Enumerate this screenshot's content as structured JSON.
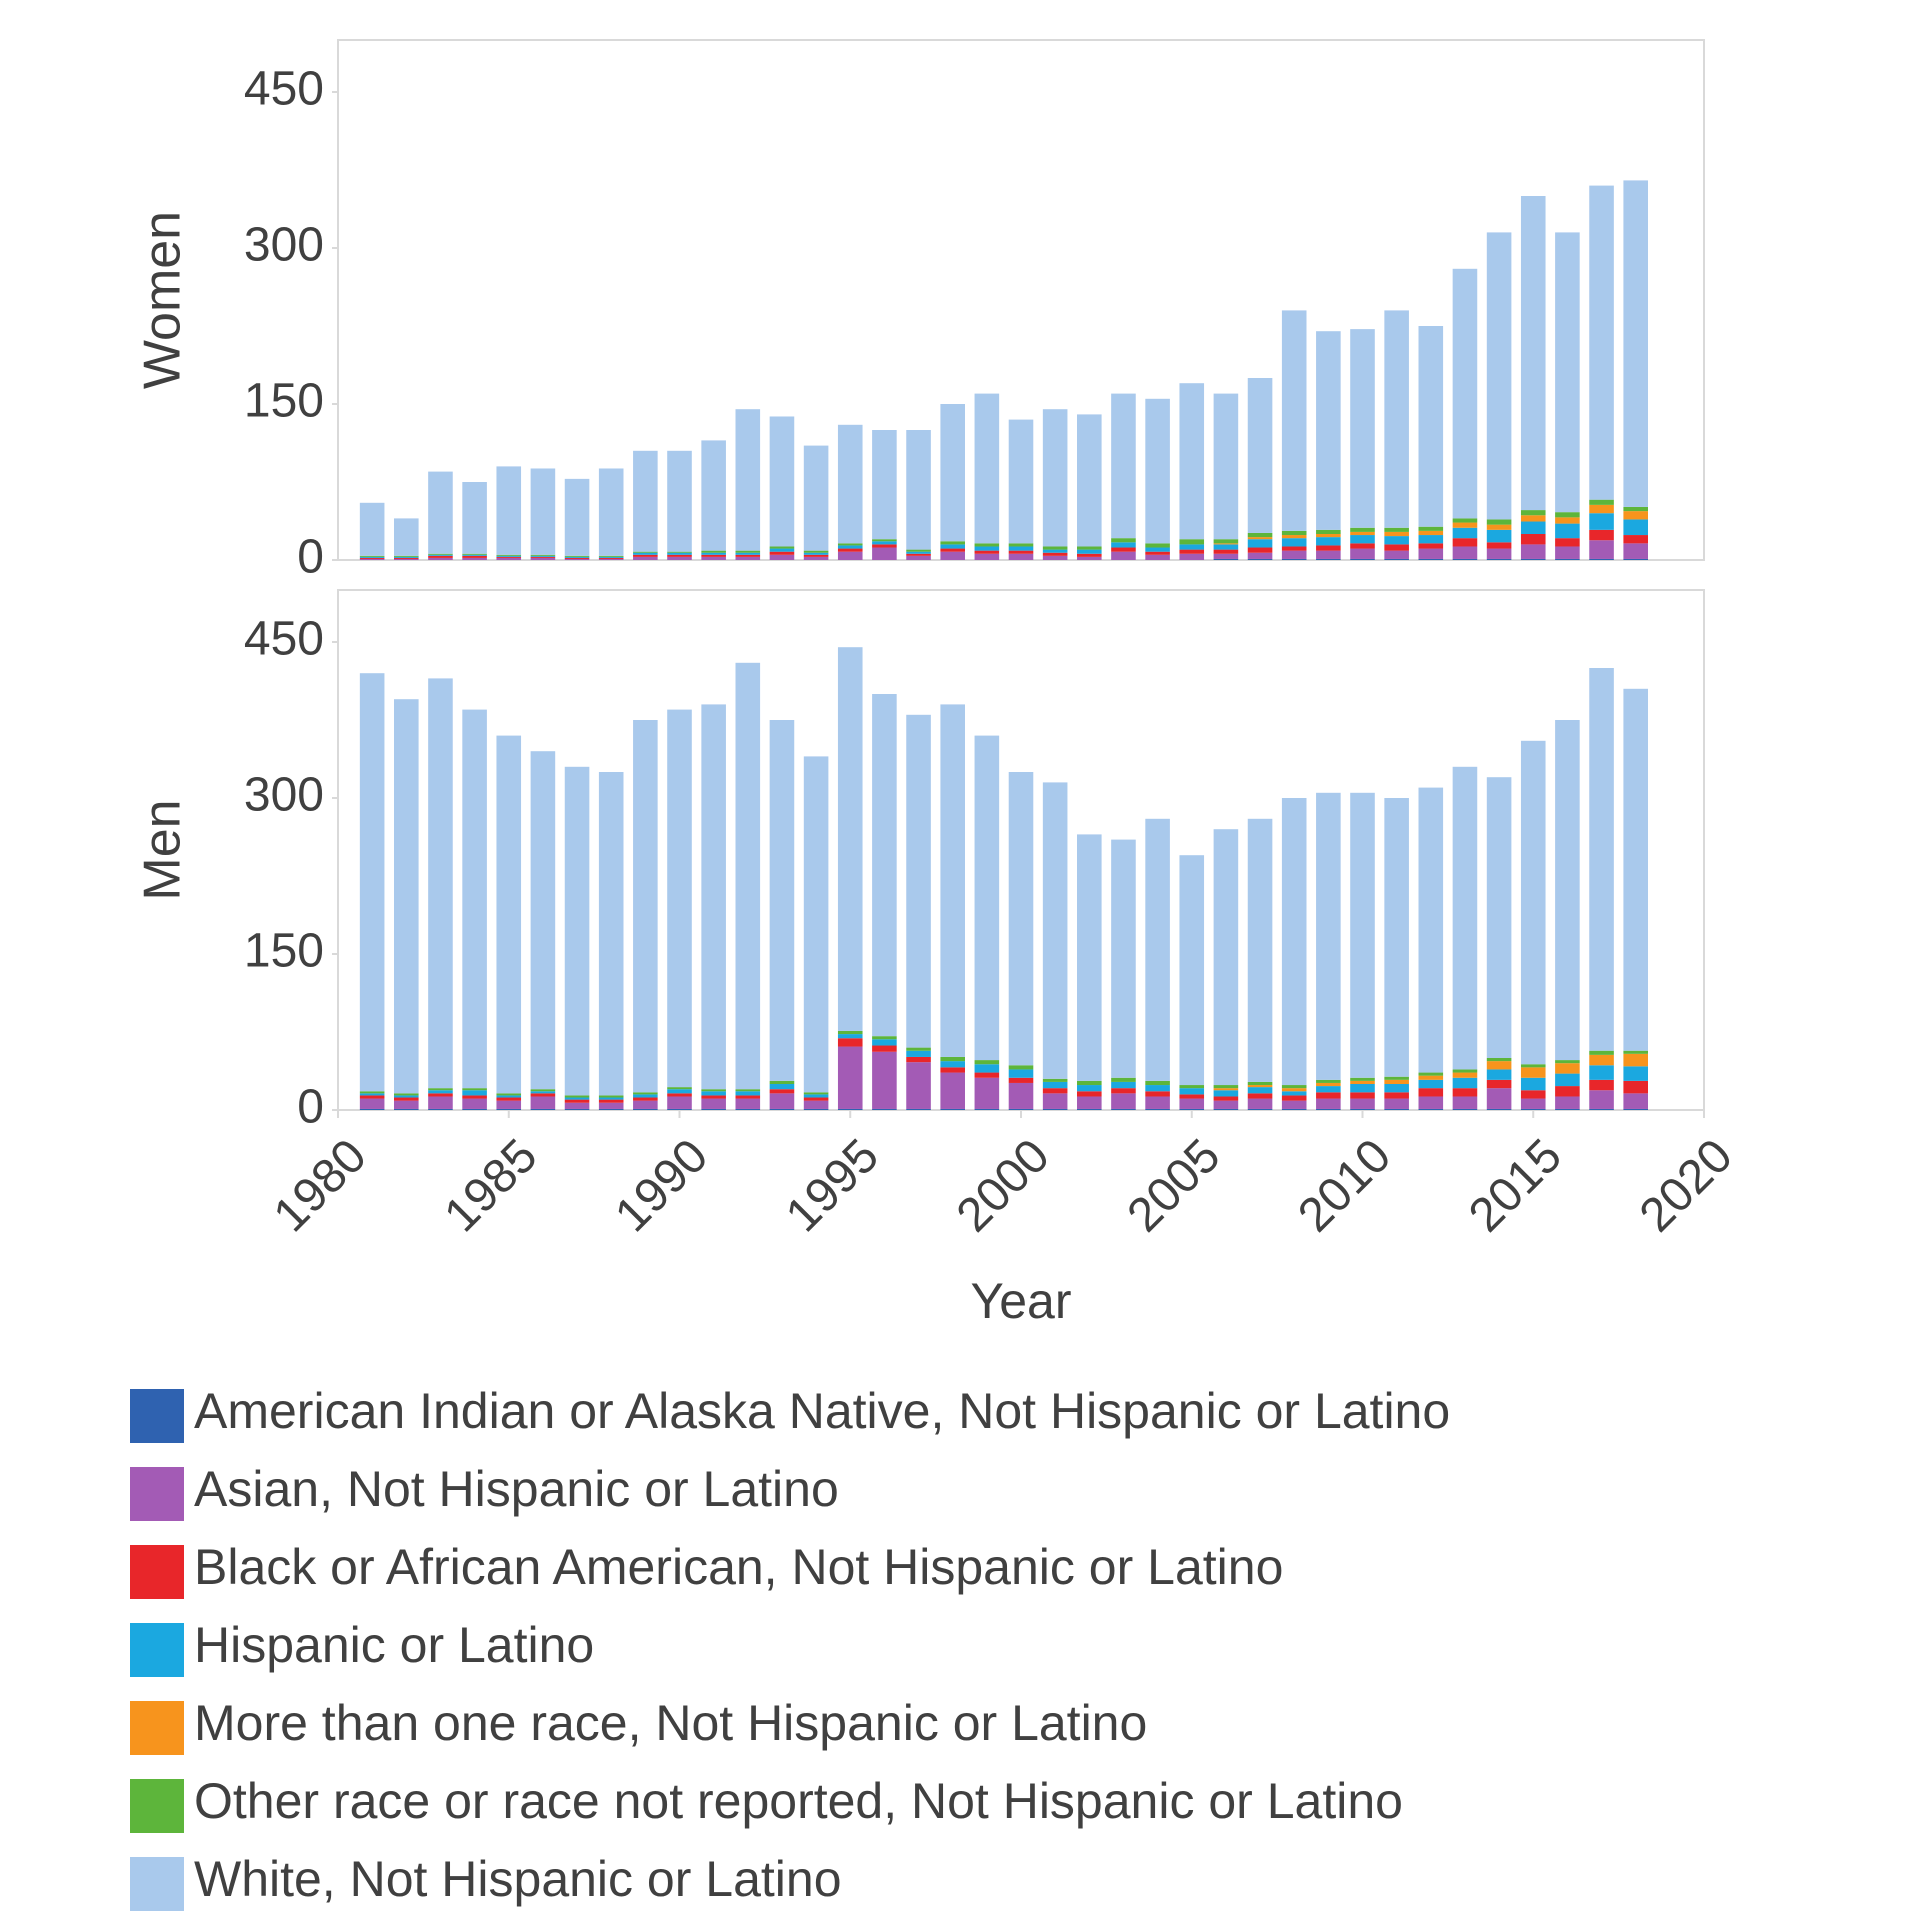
{
  "chart_data": {
    "type": "bar",
    "stacked": true,
    "xlabel": "Year",
    "x": [
      1981,
      1982,
      1983,
      1984,
      1985,
      1986,
      1987,
      1988,
      1989,
      1990,
      1991,
      1992,
      1993,
      1994,
      1995,
      1996,
      1997,
      1998,
      1999,
      2000,
      2001,
      2002,
      2003,
      2004,
      2005,
      2006,
      2007,
      2008,
      2009,
      2010,
      2011,
      2012,
      2013,
      2014,
      2015,
      2016,
      2017,
      2018
    ],
    "xlim": [
      1980,
      2020
    ],
    "xticks": [
      1980,
      1985,
      1990,
      1995,
      2000,
      2005,
      2010,
      2015,
      2020
    ],
    "series": [
      {
        "name": "American Indian or Alaska Native, Not Hispanic or Latino",
        "color": "#2f62b0"
      },
      {
        "name": "Asian, Not Hispanic or Latino",
        "color": "#a35bb5"
      },
      {
        "name": "Black or African American, Not Hispanic or Latino",
        "color": "#e8262a"
      },
      {
        "name": "Hispanic or Latino",
        "color": "#1ba8e0"
      },
      {
        "name": "More than one race, Not Hispanic or Latino",
        "color": "#f7941d"
      },
      {
        "name": "Other race or race not reported, Not Hispanic or Latino",
        "color": "#5db53b"
      },
      {
        "name": "White, Not Hispanic or Latino",
        "color": "#a9c9ec"
      }
    ],
    "panels": [
      {
        "ylabel": "Women",
        "ylim": [
          0,
          500
        ],
        "yticks": [
          0,
          150,
          300,
          450
        ],
        "values": [
          [
            0,
            0,
            0,
            0,
            0,
            0,
            0,
            0,
            0,
            0,
            0,
            0,
            0,
            0,
            0,
            0,
            0,
            0,
            0,
            0,
            0,
            0,
            0,
            0,
            0,
            1,
            1,
            1,
            1,
            1,
            1,
            1,
            1,
            1,
            1,
            1,
            1,
            1
          ],
          [
            1,
            1,
            2,
            2,
            2,
            2,
            1,
            1,
            3,
            3,
            3,
            3,
            5,
            3,
            8,
            12,
            4,
            8,
            6,
            6,
            4,
            3,
            8,
            5,
            6,
            5,
            6,
            8,
            8,
            10,
            8,
            10,
            12,
            10,
            14,
            12,
            18,
            15
          ],
          [
            1,
            1,
            2,
            2,
            1,
            1,
            1,
            1,
            2,
            2,
            2,
            2,
            3,
            2,
            3,
            3,
            2,
            3,
            3,
            3,
            3,
            3,
            4,
            3,
            4,
            4,
            5,
            4,
            5,
            5,
            6,
            5,
            8,
            6,
            10,
            8,
            10,
            8
          ],
          [
            1,
            1,
            1,
            1,
            1,
            1,
            1,
            1,
            2,
            2,
            2,
            2,
            3,
            2,
            3,
            3,
            2,
            4,
            4,
            4,
            3,
            4,
            5,
            4,
            5,
            5,
            8,
            8,
            8,
            8,
            8,
            8,
            10,
            12,
            12,
            14,
            16,
            15
          ],
          [
            0,
            0,
            0,
            0,
            0,
            0,
            0,
            0,
            0,
            0,
            0,
            0,
            0,
            0,
            0,
            0,
            0,
            0,
            0,
            0,
            0,
            0,
            0,
            0,
            0,
            1,
            2,
            3,
            3,
            3,
            4,
            4,
            5,
            5,
            6,
            6,
            8,
            8
          ],
          [
            1,
            1,
            1,
            1,
            1,
            1,
            1,
            1,
            1,
            1,
            2,
            2,
            2,
            2,
            2,
            2,
            2,
            3,
            3,
            3,
            3,
            3,
            4,
            4,
            5,
            4,
            4,
            4,
            4,
            4,
            4,
            4,
            4,
            5,
            5,
            5,
            5,
            4
          ],
          [
            51,
            36,
            79,
            69,
            85,
            83,
            74,
            84,
            97,
            97,
            106,
            136,
            125,
            101,
            114,
            105,
            115,
            132,
            144,
            119,
            132,
            127,
            139,
            139,
            150,
            140,
            149,
            212,
            191,
            191,
            209,
            193,
            240,
            276,
            302,
            269,
            302,
            314
          ]
        ]
      },
      {
        "ylabel": "Men",
        "ylim": [
          0,
          500
        ],
        "yticks": [
          0,
          150,
          300,
          450
        ],
        "values": [
          [
            1,
            1,
            1,
            1,
            1,
            1,
            1,
            1,
            1,
            1,
            1,
            1,
            1,
            1,
            1,
            1,
            1,
            1,
            1,
            1,
            1,
            1,
            1,
            1,
            1,
            1,
            1,
            1,
            1,
            1,
            1,
            1,
            1,
            1,
            1,
            1,
            1,
            1
          ],
          [
            10,
            8,
            12,
            10,
            8,
            12,
            6,
            6,
            8,
            12,
            10,
            10,
            15,
            8,
            60,
            55,
            45,
            35,
            30,
            25,
            15,
            12,
            15,
            12,
            10,
            8,
            10,
            8,
            10,
            10,
            10,
            12,
            12,
            20,
            10,
            12,
            18,
            15
          ],
          [
            3,
            3,
            3,
            3,
            3,
            3,
            3,
            3,
            3,
            3,
            3,
            3,
            4,
            3,
            8,
            6,
            5,
            5,
            5,
            5,
            5,
            5,
            5,
            5,
            4,
            4,
            5,
            5,
            6,
            6,
            6,
            8,
            8,
            8,
            8,
            10,
            10,
            12
          ],
          [
            2,
            2,
            3,
            5,
            2,
            2,
            2,
            2,
            3,
            4,
            4,
            4,
            5,
            3,
            4,
            6,
            6,
            6,
            8,
            8,
            6,
            6,
            6,
            6,
            6,
            6,
            6,
            4,
            6,
            8,
            8,
            8,
            10,
            10,
            12,
            12,
            14,
            14
          ],
          [
            0,
            0,
            0,
            0,
            0,
            0,
            0,
            0,
            0,
            0,
            0,
            0,
            0,
            0,
            0,
            0,
            0,
            0,
            0,
            0,
            0,
            0,
            0,
            0,
            0,
            2,
            2,
            3,
            3,
            3,
            4,
            4,
            5,
            8,
            10,
            10,
            10,
            12
          ],
          [
            2,
            2,
            2,
            2,
            2,
            2,
            2,
            2,
            2,
            2,
            2,
            2,
            3,
            2,
            3,
            3,
            3,
            4,
            4,
            4,
            3,
            4,
            4,
            4,
            3,
            3,
            3,
            3,
            3,
            3,
            3,
            3,
            3,
            3,
            3,
            3,
            4,
            3
          ],
          [
            402,
            379,
            394,
            364,
            344,
            325,
            316,
            311,
            358,
            363,
            370,
            410,
            347,
            323,
            369,
            329,
            320,
            339,
            312,
            282,
            285,
            237,
            229,
            252,
            221,
            246,
            253,
            276,
            276,
            274,
            268,
            274,
            291,
            270,
            311,
            327,
            368,
            348
          ]
        ]
      }
    ]
  }
}
